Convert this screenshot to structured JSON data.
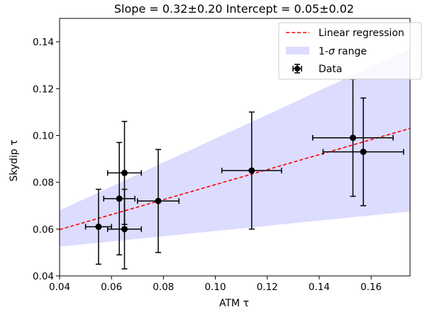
{
  "chart_data": {
    "type": "scatter",
    "title": "Slope = 0.32±0.20 Intercept = 0.05±0.02",
    "xlabel": "ATM τ",
    "ylabel": "Skydip τ",
    "xlim": [
      0.04,
      0.175
    ],
    "ylim": [
      0.04,
      0.15
    ],
    "xticks": [
      0.04,
      0.06,
      0.08,
      0.1,
      0.12,
      0.14,
      0.16
    ],
    "xtick_labels": [
      "0.04",
      "0.06",
      "0.08",
      "0.10",
      "0.12",
      "0.14",
      "0.16"
    ],
    "yticks": [
      0.04,
      0.06,
      0.08,
      0.1,
      0.12,
      0.14
    ],
    "ytick_labels": [
      "0.04",
      "0.06",
      "0.08",
      "0.10",
      "0.12",
      "0.14"
    ],
    "grid": false,
    "legend_position": "upper right",
    "series": [
      {
        "name": "Data",
        "kind": "errorbar",
        "color": "#000000",
        "points": [
          {
            "x": 0.055,
            "y": 0.061,
            "xerr": 0.005,
            "yerr": 0.016
          },
          {
            "x": 0.063,
            "y": 0.073,
            "xerr": 0.006,
            "yerr": 0.024
          },
          {
            "x": 0.065,
            "y": 0.084,
            "xerr": 0.0065,
            "yerr": 0.022
          },
          {
            "x": 0.065,
            "y": 0.06,
            "xerr": 0.0065,
            "yerr": 0.017
          },
          {
            "x": 0.078,
            "y": 0.072,
            "xerr": 0.008,
            "yerr": 0.022
          },
          {
            "x": 0.114,
            "y": 0.085,
            "xerr": 0.0115,
            "yerr": 0.025
          },
          {
            "x": 0.153,
            "y": 0.099,
            "xerr": 0.0155,
            "yerr": 0.025
          },
          {
            "x": 0.157,
            "y": 0.093,
            "xerr": 0.0155,
            "yerr": 0.023
          }
        ]
      },
      {
        "name": "Linear regression",
        "kind": "line",
        "style": "dashed",
        "color": "#ff0000",
        "slope": 0.32,
        "intercept": 0.047
      },
      {
        "name": "1-σ range",
        "kind": "band",
        "color": "#dcdcff",
        "lower": [
          [
            0.04,
            0.0525
          ],
          [
            0.175,
            0.0675
          ]
        ],
        "upper": [
          [
            0.04,
            0.068
          ],
          [
            0.175,
            0.137
          ]
        ]
      }
    ],
    "legend": [
      {
        "label": "Linear regression",
        "kind": "line"
      },
      {
        "label": "1-σ range",
        "kind": "band"
      },
      {
        "label": "Data",
        "kind": "errorbar"
      }
    ]
  }
}
